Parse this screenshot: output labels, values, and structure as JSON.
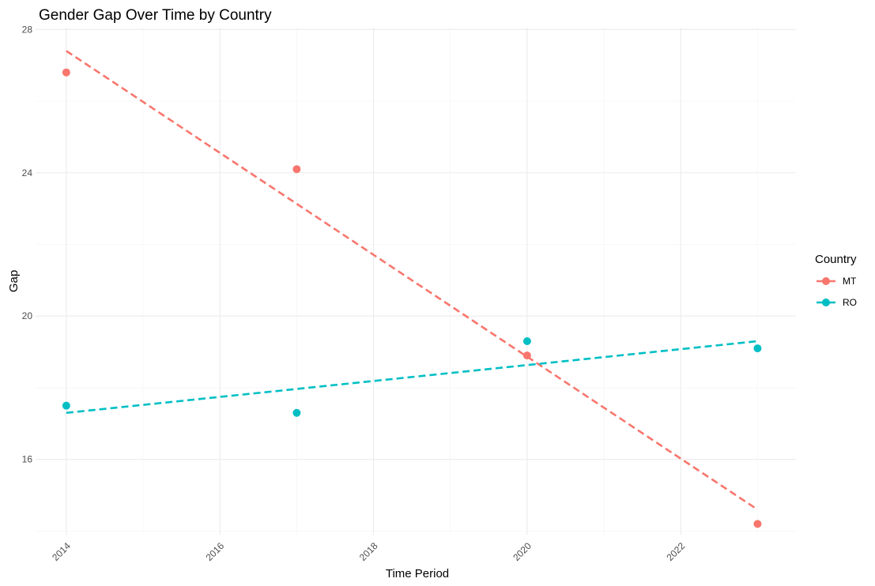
{
  "chart_data": {
    "type": "scatter",
    "title": "Gender Gap Over Time by Country",
    "xlabel": "Time Period",
    "ylabel": "Gap",
    "xlim": [
      2013.6,
      2023.5
    ],
    "ylim": [
      13.9,
      28.05
    ],
    "x_ticks": [
      2014,
      2016,
      2018,
      2020,
      2022
    ],
    "x_tick_labels": [
      "2014",
      "2016",
      "2018",
      "2020",
      "2022"
    ],
    "y_ticks": [
      16,
      20,
      24,
      28
    ],
    "y_tick_labels": [
      "16",
      "20",
      "24",
      "28"
    ],
    "grid": true,
    "legend": {
      "title": "Country",
      "position": "right"
    },
    "series": [
      {
        "name": "MT",
        "color": "#F8766D",
        "points": [
          {
            "x": 2014,
            "y": 26.8
          },
          {
            "x": 2017,
            "y": 24.1
          },
          {
            "x": 2020,
            "y": 18.9
          },
          {
            "x": 2023,
            "y": 14.2
          }
        ],
        "trend": [
          {
            "x": 2014,
            "y": 27.4
          },
          {
            "x": 2023,
            "y": 14.6
          }
        ]
      },
      {
        "name": "RO",
        "color": "#00BFC4",
        "points": [
          {
            "x": 2014,
            "y": 17.5
          },
          {
            "x": 2017,
            "y": 17.3
          },
          {
            "x": 2020,
            "y": 19.3
          },
          {
            "x": 2023,
            "y": 19.1
          }
        ],
        "trend": [
          {
            "x": 2014,
            "y": 17.3
          },
          {
            "x": 2023,
            "y": 19.3
          }
        ]
      }
    ]
  }
}
